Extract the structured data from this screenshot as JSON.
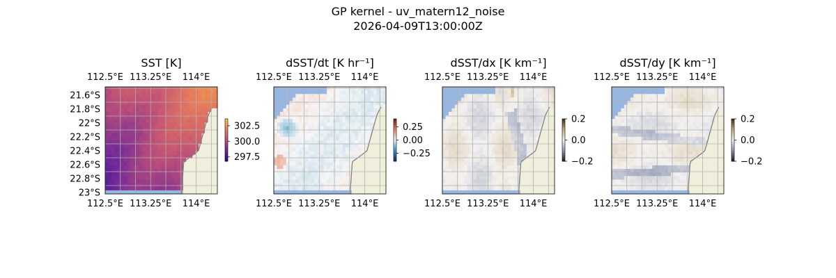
{
  "figure": {
    "title_line1": "GP kernel - uv_matern12_noise",
    "title_line2": "2026-04-09T13:00:00Z"
  },
  "colors": {
    "land": "#efefdb",
    "ocean_mask": "#97b6e0",
    "coast": "#808080",
    "grid": "#b0b0b0"
  },
  "chart_data": [
    {
      "type": "heatmap",
      "title": "SST [K]",
      "lon_ticks": [
        "112.5°E",
        "113.25°E",
        "114°E"
      ],
      "lon_tick_values": [
        112.5,
        113.25,
        114.0
      ],
      "lat_ticks": [
        "21.6°S",
        "21.8°S",
        "22°S",
        "22.2°S",
        "22.4°S",
        "22.6°S",
        "22.8°S",
        "23°S"
      ],
      "lat_tick_values": [
        -21.6,
        -21.8,
        -22.0,
        -22.2,
        -22.4,
        -22.6,
        -22.8,
        -23.0
      ],
      "show_lat_labels": true,
      "extent": {
        "lon": [
          112.5,
          114.35
        ],
        "lat": [
          -23.02,
          -21.48
        ]
      },
      "colormap": "plasma",
      "colorbar": {
        "ticks": [
          "302.5",
          "300.0",
          "297.5"
        ],
        "tick_values": [
          302.5,
          300.0,
          297.5
        ],
        "range": [
          296.8,
          303.6
        ]
      }
    },
    {
      "type": "heatmap",
      "title": "dSST/dt [K hr⁻¹]",
      "lon_ticks": [
        "112.5°E",
        "113.25°E",
        "114°E"
      ],
      "lon_tick_values": [
        112.5,
        113.25,
        114.0
      ],
      "lat_ticks": [],
      "show_lat_labels": false,
      "extent": {
        "lon": [
          112.5,
          114.35
        ],
        "lat": [
          -23.02,
          -21.48
        ]
      },
      "colormap": "diverging-blue-red",
      "colorbar": {
        "ticks": [
          "0.25",
          "0.00",
          "−0.25"
        ],
        "tick_values": [
          0.25,
          0.0,
          -0.25
        ],
        "range": [
          -0.4,
          0.4
        ]
      }
    },
    {
      "type": "heatmap",
      "title": "dSST/dx [K km⁻¹]",
      "lon_ticks": [
        "112.5°E",
        "113.25°E",
        "114°E"
      ],
      "lon_tick_values": [
        112.5,
        113.25,
        114.0
      ],
      "lat_ticks": [],
      "show_lat_labels": false,
      "extent": {
        "lon": [
          112.5,
          114.35
        ],
        "lat": [
          -23.02,
          -21.48
        ]
      },
      "colormap": "diverging-blue-tan",
      "colorbar": {
        "ticks": [
          "0.2",
          "0.0",
          "−0.2"
        ],
        "tick_values": [
          0.2,
          0.0,
          -0.2
        ],
        "range": [
          -0.2,
          0.2
        ]
      }
    },
    {
      "type": "heatmap",
      "title": "dSST/dy [K km⁻¹]",
      "lon_ticks": [
        "112.5°E",
        "113.25°E",
        "114°E"
      ],
      "lon_tick_values": [
        112.5,
        113.25,
        114.0
      ],
      "lat_ticks": [],
      "show_lat_labels": false,
      "extent": {
        "lon": [
          112.5,
          114.35
        ],
        "lat": [
          -23.02,
          -21.48
        ]
      },
      "colormap": "diverging-blue-tan",
      "colorbar": {
        "ticks": [
          "0.2",
          "0.0",
          "−0.2"
        ],
        "tick_values": [
          0.2,
          0.0,
          -0.2
        ],
        "range": [
          -0.2,
          0.2
        ]
      }
    }
  ]
}
